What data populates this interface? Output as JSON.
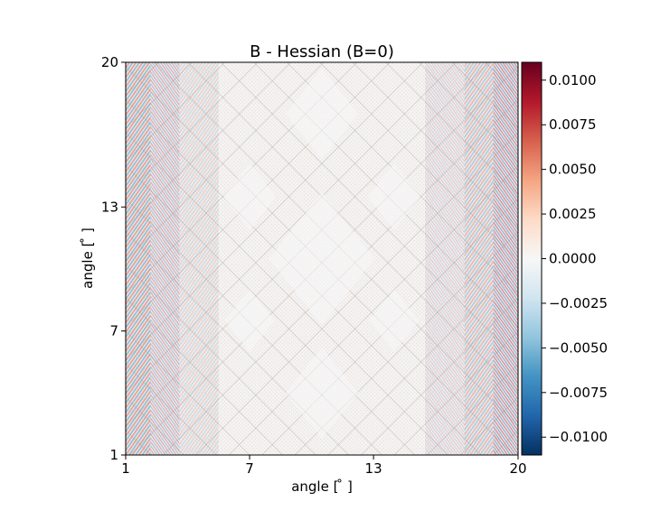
{
  "chart_data": {
    "type": "heatmap",
    "title": "B - Hessian (B=0)",
    "xlabel": "angle [$^\\circ$]",
    "ylabel": "angle [$^\\circ$]",
    "xlabel_display": "angle [ ̊ ]",
    "ylabel_display": "angle [ ̊ ]",
    "xlim": [
      1,
      20
    ],
    "ylim": [
      1,
      20
    ],
    "xticks": [
      1,
      7,
      13,
      20
    ],
    "yticks": [
      1,
      7,
      13,
      20
    ],
    "xtick_labels": [
      "1",
      "7",
      "13",
      "20"
    ],
    "ytick_labels": [
      "1",
      "7",
      "13",
      "20"
    ],
    "colormap": "RdBu_r",
    "colorbar": {
      "vmin": -0.011,
      "vmax": 0.011,
      "ticks": [
        -0.01,
        -0.0075,
        -0.005,
        -0.0025,
        0.0,
        0.0025,
        0.005,
        0.0075,
        0.01
      ],
      "tick_labels": [
        "−0.0100",
        "−0.0075",
        "−0.0050",
        "−0.0025",
        "0.0000",
        "0.0025",
        "0.0050",
        "0.0075",
        "0.0100"
      ],
      "colors": [
        "#053061",
        "#2166ac",
        "#4393c3",
        "#92c5de",
        "#d1e5f0",
        "#f7f7f7",
        "#fddbc7",
        "#f4a582",
        "#d6604d",
        "#b2182b",
        "#67001f"
      ]
    },
    "description_pattern": "fine oscillatory interference pattern with diamond lattice; strongest amplitude near x edges",
    "grid": false,
    "legend": "none"
  }
}
